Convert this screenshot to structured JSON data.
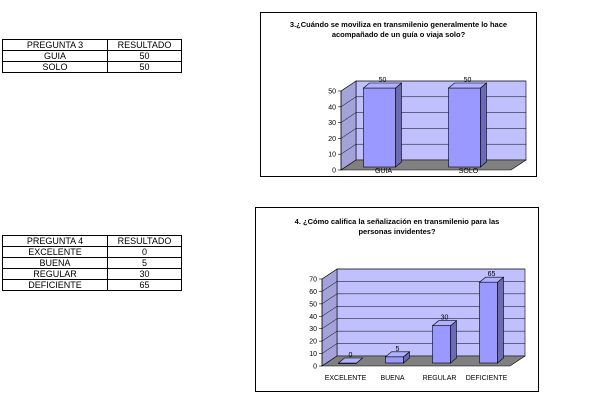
{
  "table1": {
    "headers": [
      "PREGUNTA 3",
      "RESULTADO"
    ],
    "rows": [
      [
        "GUIA",
        "50"
      ],
      [
        "SOLO",
        "50"
      ]
    ]
  },
  "table2": {
    "headers": [
      "PREGUNTA 4",
      "RESULTADO"
    ],
    "rows": [
      [
        "EXCELENTE",
        "0"
      ],
      [
        "BUENA",
        "5"
      ],
      [
        "REGULAR",
        "30"
      ],
      [
        "DEFICIENTE",
        "65"
      ]
    ]
  },
  "chart_data": [
    {
      "type": "bar",
      "title": "3.¿Cuándo se moviliza en transmilenio generalmente lo hace acompañado de un guía o viaja solo?",
      "categories": [
        "GUIA",
        "SOLO"
      ],
      "values": [
        50,
        50
      ],
      "ylim": [
        0,
        50
      ],
      "yticks": [
        0,
        10,
        20,
        30,
        40,
        50
      ],
      "grid": true,
      "style": "3d",
      "bar_color": "#9999ff",
      "wall_color": "#c0c0ff",
      "floor_color": "#808080"
    },
    {
      "type": "bar",
      "title": "4. ¿Cómo califica la señalización en transmilenio para las personas invidentes?",
      "categories": [
        "EXCELENTE",
        "BUENA",
        "REGULAR",
        "DEFICIENTE"
      ],
      "values": [
        0,
        5,
        30,
        65
      ],
      "ylim": [
        0,
        70
      ],
      "yticks": [
        0,
        10,
        20,
        30,
        40,
        50,
        60,
        70
      ],
      "grid": true,
      "style": "3d",
      "bar_color": "#9999ff",
      "wall_color": "#c0c0ff",
      "floor_color": "#808080"
    }
  ]
}
